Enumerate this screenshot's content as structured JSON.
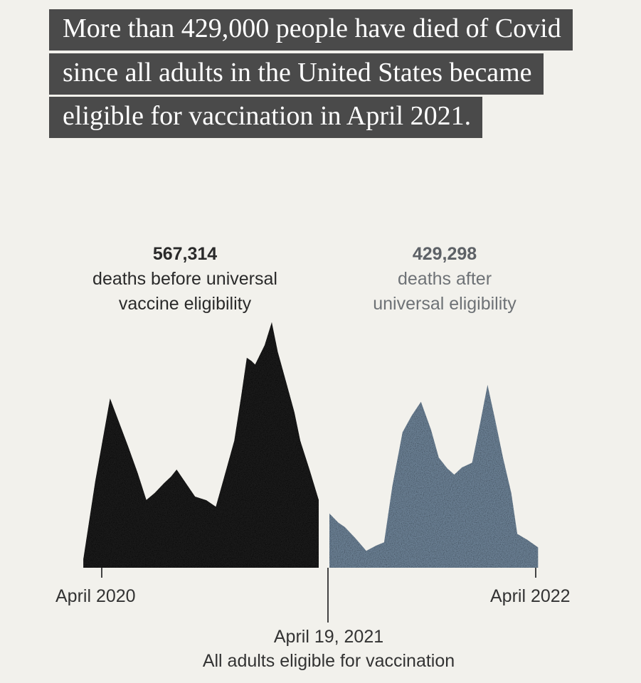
{
  "headline": "More than 429,000 people have died of Covid since all adults in the United States became eligible for vaccination in April 2021.",
  "chart_data": {
    "type": "area",
    "xlabel": "",
    "ylabel": "",
    "x_range": [
      "2020-04",
      "2022-04"
    ],
    "split_date": "2021-04-19",
    "series": [
      {
        "values": [
          {
            "x": "2020-03-01",
            "y": 0.05
          },
          {
            "x": "2020-04-15",
            "y": 1.0
          },
          {
            "x": "2020-05-15",
            "y": 0.72
          },
          {
            "x": "2020-06-15",
            "y": 0.4
          },
          {
            "x": "2020-07-15",
            "y": 0.5
          },
          {
            "x": "2020-08-05",
            "y": 0.58
          },
          {
            "x": "2020-09-05",
            "y": 0.42
          },
          {
            "x": "2020-10-10",
            "y": 0.36
          },
          {
            "x": "2020-11-10",
            "y": 0.75
          },
          {
            "x": "2020-12-01",
            "y": 1.24
          },
          {
            "x": "2020-12-15",
            "y": 1.2
          },
          {
            "x": "2021-01-12",
            "y": 1.45
          },
          {
            "x": "2021-02-05",
            "y": 1.1
          },
          {
            "x": "2021-03-01",
            "y": 0.75
          },
          {
            "x": "2021-04-01",
            "y": 0.4
          }
        ],
        "color": "#1f1f1f"
      },
      {
        "values": [
          {
            "x": "2021-04-19",
            "y": 0.32
          },
          {
            "x": "2021-05-15",
            "y": 0.24
          },
          {
            "x": "2021-06-20",
            "y": 0.1
          },
          {
            "x": "2021-07-20",
            "y": 0.15
          },
          {
            "x": "2021-08-20",
            "y": 0.8
          },
          {
            "x": "2021-09-20",
            "y": 0.98
          },
          {
            "x": "2021-10-20",
            "y": 0.65
          },
          {
            "x": "2021-11-15",
            "y": 0.55
          },
          {
            "x": "2021-12-15",
            "y": 0.62
          },
          {
            "x": "2022-01-10",
            "y": 1.08
          },
          {
            "x": "2022-02-05",
            "y": 0.65
          },
          {
            "x": "2022-03-01",
            "y": 0.2
          },
          {
            "x": "2022-04-05",
            "y": 0.12
          }
        ],
        "color": "#6b7f93"
      }
    ],
    "annotations": [
      {
        "value": "567,314",
        "text": "deaths before universal\nvaccine eligibility"
      },
      {
        "value": "429,298",
        "text": "deaths after\nuniversal eligibility"
      }
    ],
    "tick_labels": [
      "April 2020",
      "April 2022"
    ],
    "event_label": {
      "date": "April 19, 2021",
      "text": "All adults eligible for vaccination"
    },
    "grid": false
  }
}
